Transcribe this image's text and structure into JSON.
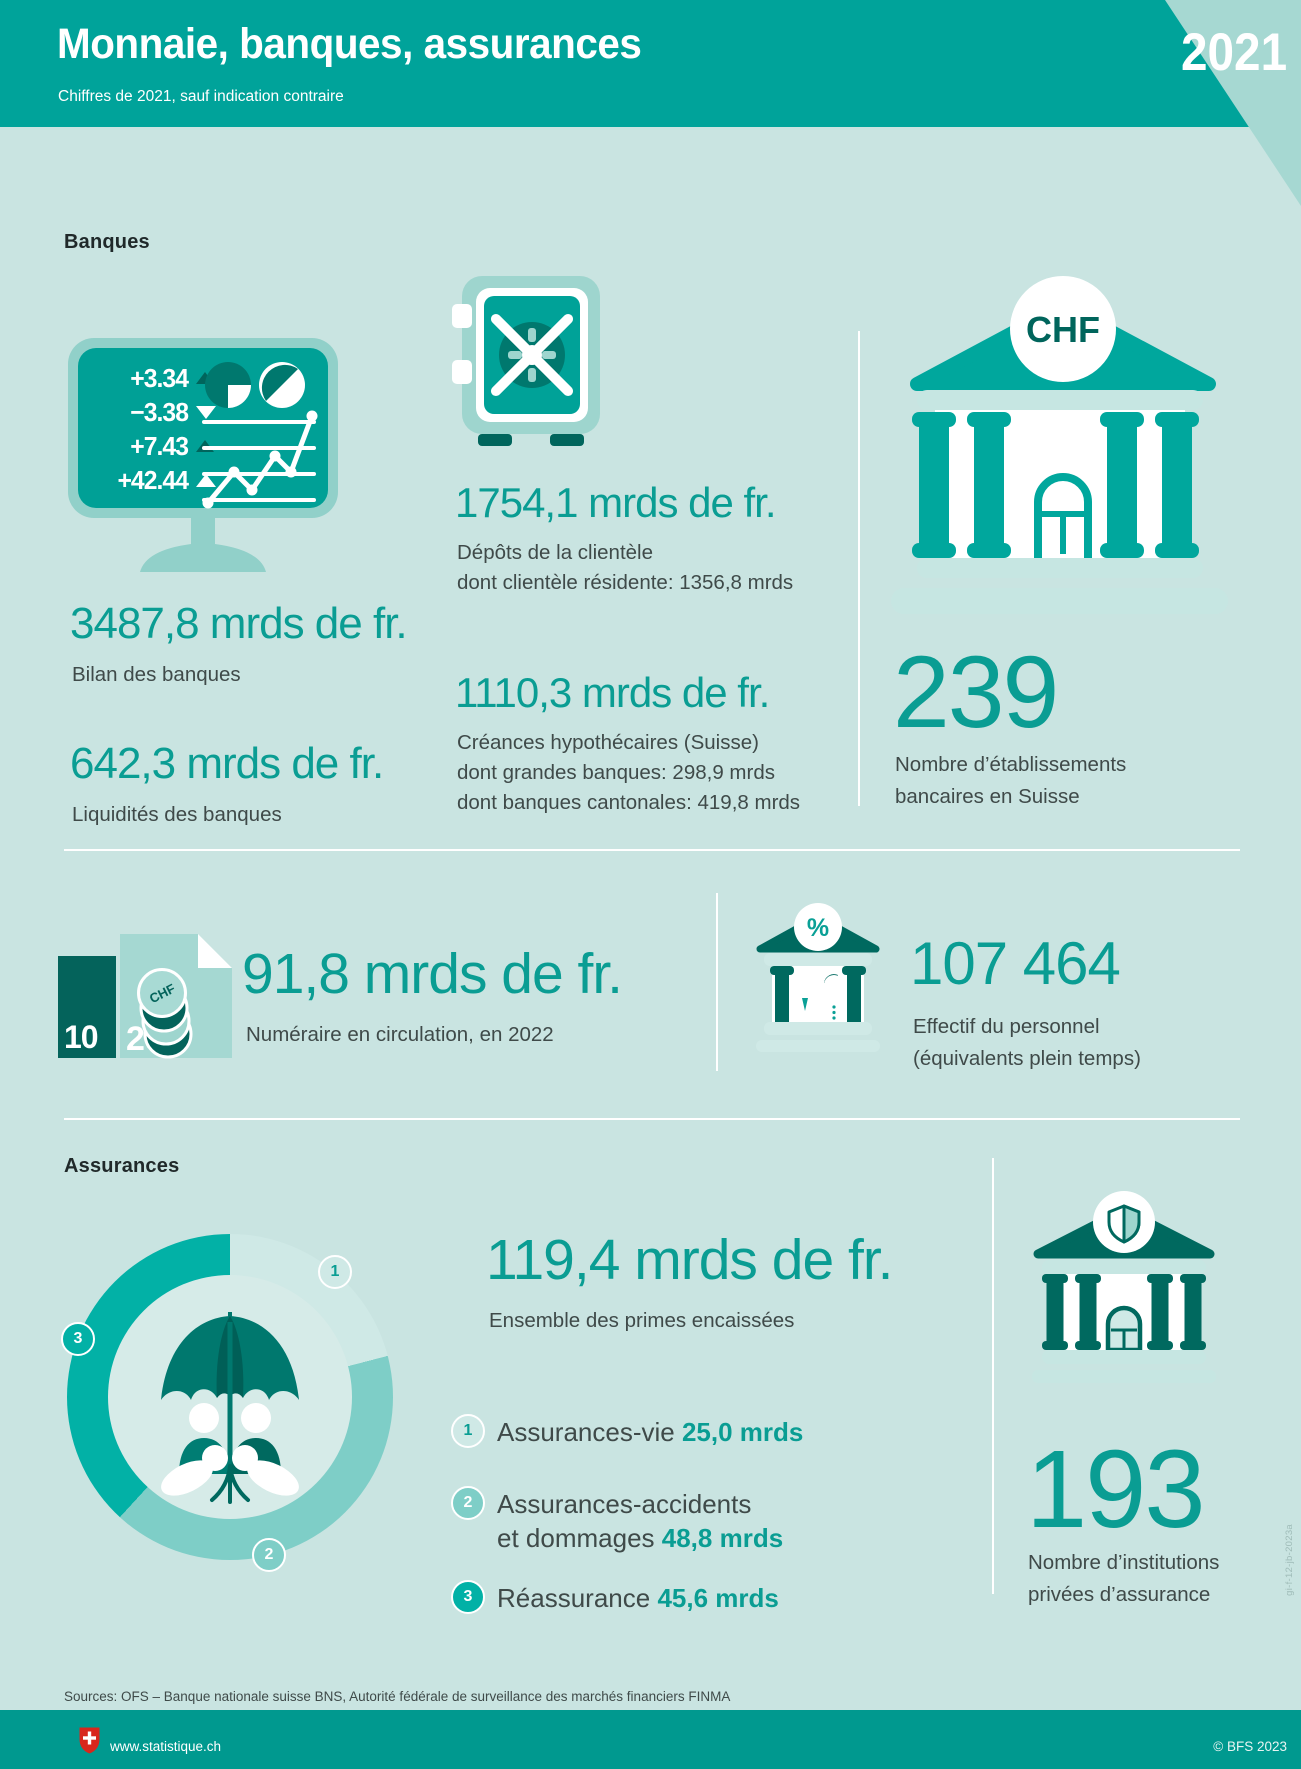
{
  "page": {
    "title": "Monnaie, banques, assurances",
    "subtitle": "Chiffres de 2021, sauf indication contraire",
    "year": "2021",
    "accent_color": "#0a9d93",
    "header_color": "#00a39a",
    "background_color": "#c9e4e1"
  },
  "banques": {
    "section_label": "Banques",
    "monitor_rows": [
      {
        "value": "+3.34",
        "direction": "up"
      },
      {
        "value": "−3.38",
        "direction": "down"
      },
      {
        "value": "+7.43",
        "direction": "up"
      },
      {
        "value": "+42.44",
        "direction": "up"
      }
    ],
    "bilan": {
      "value": "3487,8 mrds de fr.",
      "label": "Bilan des banques"
    },
    "liquidites": {
      "value": "642,3 mrds de fr.",
      "label": "Liquidités des banques"
    },
    "depots": {
      "value": "1754,1 mrds de fr.",
      "label": "Dépôts de la clientèle",
      "sub": "dont clientèle résidente: 1356,8 mrds"
    },
    "creances": {
      "value": "1110,3 mrds de fr.",
      "label": "Créances hypothécaires (Suisse)",
      "sub1": "dont grandes banques: 298,9 mrds",
      "sub2": "dont banques cantonales: 419,8 mrds"
    },
    "etablissements": {
      "value": "239",
      "label_line1": "Nombre d’établissements",
      "label_line2": "bancaires en Suisse"
    },
    "chf_badge": "CHF"
  },
  "monnaie": {
    "numeraire": {
      "value": "91,8 mrds de fr.",
      "label": "Numéraire en circulation, en 2022"
    },
    "personnel": {
      "value": "107 464",
      "label_line1": "Effectif du personnel",
      "label_line2": "(équivalents plein temps)"
    },
    "note_small": "10",
    "note_large": "20",
    "coin_text": "CHF",
    "percent_badge": "%"
  },
  "assurances": {
    "section_label": "Assurances",
    "primes": {
      "value": "119,4 mrds de fr.",
      "label": "Ensemble des primes encaissées"
    },
    "institutions": {
      "value": "193",
      "label_line1": "Nombre d’institutions",
      "label_line2": "privées d’assurance"
    },
    "legend": [
      {
        "num": "1",
        "label": "Assurances-vie",
        "value": "25,0 mrds"
      },
      {
        "num": "2",
        "label_line1": "Assurances-accidents",
        "label_line2": "et dommages",
        "value": "48,8 mrds"
      },
      {
        "num": "3",
        "label": "Réassurance",
        "value": "45,6 mrds"
      }
    ]
  },
  "chart_data": {
    "type": "pie",
    "donut": true,
    "title": "Ensemble des primes encaissées",
    "unit": "mrds de fr.",
    "total": 119.4,
    "categories": [
      "Assurances-vie",
      "Assurances-accidents et dommages",
      "Réassurance"
    ],
    "values": [
      25.0,
      48.8,
      45.6
    ],
    "labels": [
      "1",
      "2",
      "3"
    ],
    "colors": [
      "#cfe9e6",
      "#7ecec7",
      "#02b1a6"
    ],
    "badge_text_colors": [
      "#0a9d93",
      "#ffffff",
      "#ffffff"
    ],
    "label_angles_deg": [
      40,
      166,
      291
    ],
    "start_angle_deg": 0,
    "legend_position": "right"
  },
  "footer": {
    "sources": "Sources: OFS – Banque nationale suisse BNS, Autorité fédérale de surveillance des marchés financiers FINMA",
    "site": "www.statistique.ch",
    "copyright": "© BFS 2023",
    "side_caption": "gi-f-12-jb-2023a"
  }
}
